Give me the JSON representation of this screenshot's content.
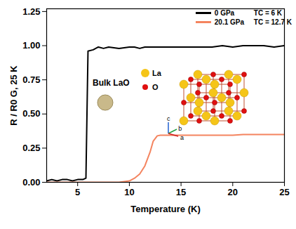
{
  "chart_data": {
    "type": "line",
    "x_label": "Temperature (K)",
    "y_label": "R / R0 G, 25 K",
    "x": [
      2,
      2.5,
      3,
      3.5,
      4,
      4.5,
      5,
      5.5,
      5.8,
      6.0,
      6.5,
      7,
      7.5,
      8,
      9,
      10,
      10.5,
      11,
      11.5,
      12,
      12.3,
      12.7,
      13,
      14,
      15,
      16,
      17,
      18,
      19,
      20,
      21,
      22,
      23,
      24,
      25
    ],
    "series": [
      {
        "name": "0 GPa",
        "tc_label": "TC = 6 K",
        "color": "#000000",
        "values": [
          0.01,
          0.02,
          0.01,
          0.02,
          0.02,
          0.01,
          0.02,
          0.02,
          0.03,
          0.96,
          0.97,
          0.99,
          0.98,
          0.99,
          0.98,
          0.99,
          0.99,
          0.98,
          0.99,
          0.99,
          0.99,
          0.99,
          0.99,
          0.99,
          0.99,
          0.99,
          0.99,
          0.99,
          1.0,
          0.99,
          1.0,
          1.0,
          1.0,
          0.99,
          1.0
        ]
      },
      {
        "name": "20.1 GPa",
        "tc_label": "TC = 12.7 K",
        "color": "#f4845f",
        "values": [
          0,
          0,
          0,
          0,
          0,
          0,
          0,
          0,
          0,
          0,
          0,
          0,
          0,
          0,
          0,
          0.01,
          0.03,
          0.06,
          0.12,
          0.22,
          0.3,
          0.34,
          0.345,
          0.345,
          0.345,
          0.345,
          0.345,
          0.345,
          0.345,
          0.345,
          0.35,
          0.35,
          0.35,
          0.35,
          0.35
        ]
      }
    ],
    "xlim": [
      2,
      25
    ],
    "ylim": [
      0,
      1.27
    ],
    "xticks": [
      5,
      10,
      15,
      20,
      25
    ],
    "yticks": [
      {
        "value": 0,
        "label": "0.00"
      },
      {
        "value": 0.25,
        "label": "0.25"
      },
      {
        "value": 0.5,
        "label": "0.50"
      },
      {
        "value": 0.75,
        "label": "0.75"
      },
      {
        "value": 1.0,
        "label": "1.00"
      },
      {
        "value": 1.25,
        "label": "1.25"
      }
    ],
    "legend": "top-right",
    "inset": {
      "label": "Bulk LaO",
      "atoms": [
        {
          "name": "La",
          "color": "#f5c518"
        },
        {
          "name": "O",
          "color": "#e01010"
        }
      ],
      "axes": [
        "c",
        "b",
        "a"
      ]
    }
  }
}
